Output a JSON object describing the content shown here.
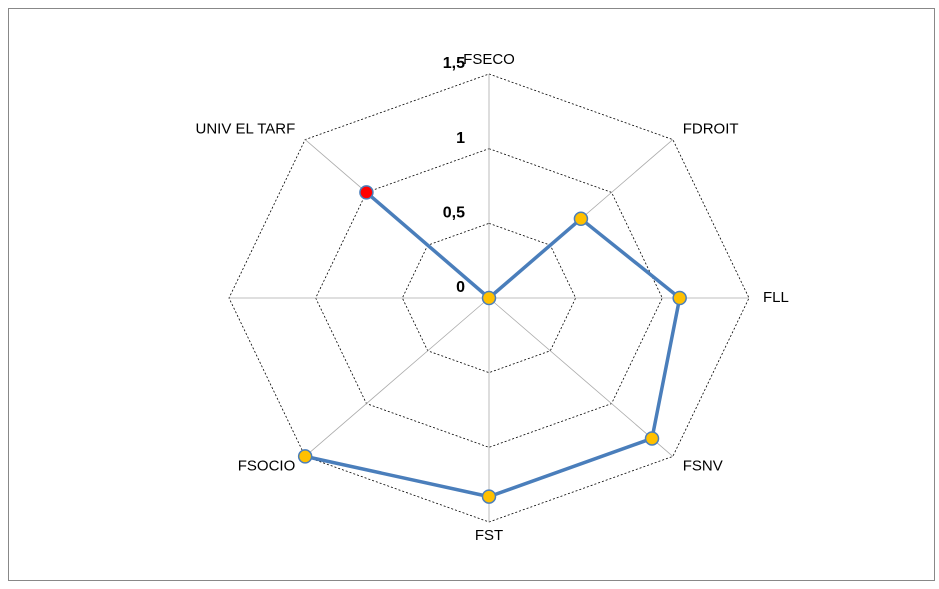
{
  "chart_data": {
    "type": "radar",
    "categories": [
      "FSECO",
      "FDROIT",
      "FLL",
      "FSNV",
      "FST",
      "FSOCIO",
      null,
      "UNIV EL TARF"
    ],
    "series": [
      {
        "name": null,
        "color": "#4a7ebb",
        "values": [
          0,
          0.75,
          1.1,
          1.33,
          1.33,
          1.5,
          null,
          1
        ],
        "marker_colors": [
          "#ffc000",
          "#ffc000",
          "#ffc000",
          "#ffc000",
          "#ffc000",
          "#ffc000",
          null,
          "#ff0000"
        ]
      }
    ],
    "ylim": [
      0,
      1.5
    ],
    "yticks": [
      0,
      {
        "value": 0.5,
        "label": "0,5"
      },
      1,
      {
        "value": 1.5,
        "label": "1,5"
      }
    ],
    "tick_color": "#c0504d",
    "grid": true
  }
}
